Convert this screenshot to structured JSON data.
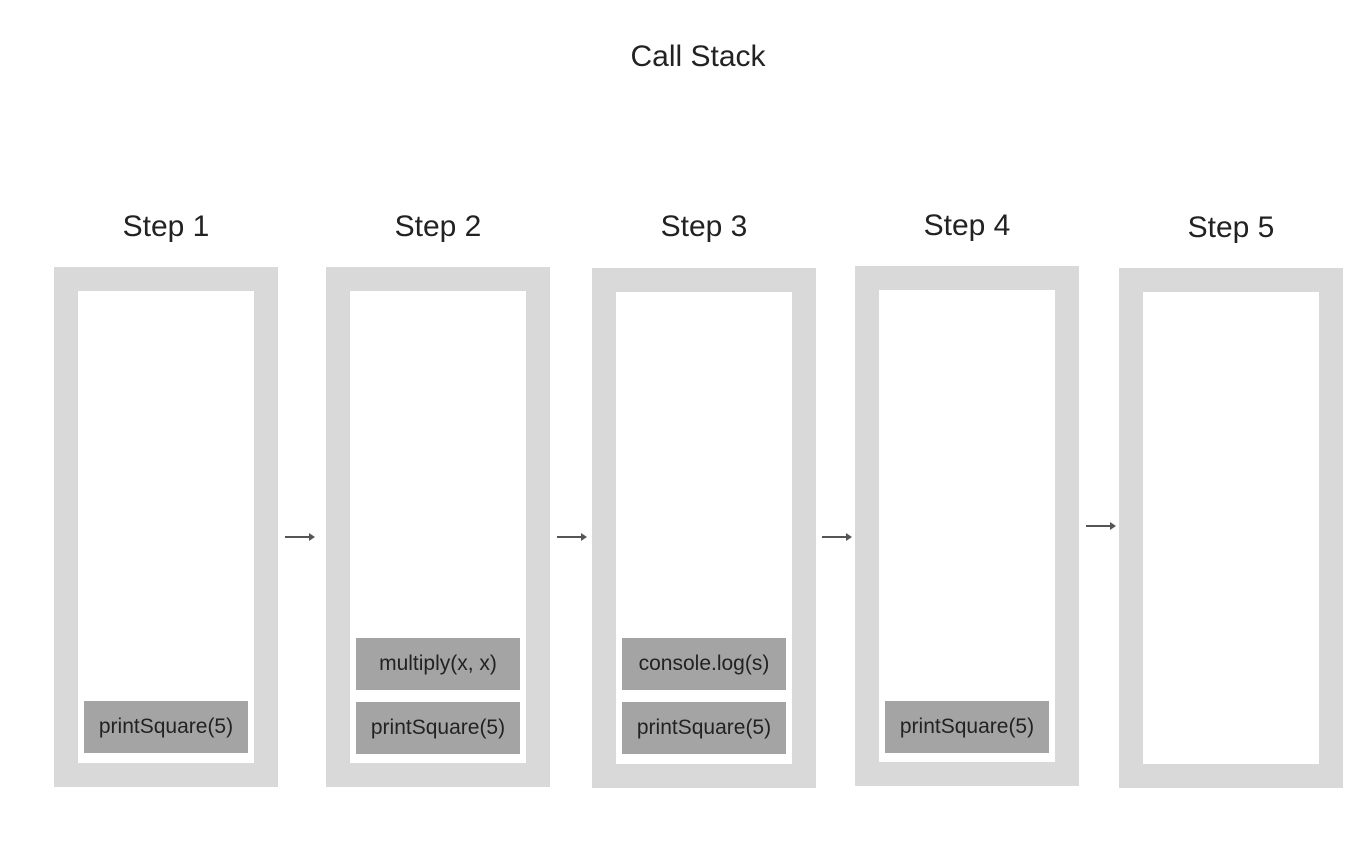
{
  "title": "Call Stack",
  "steps": [
    {
      "label": "Step 1",
      "frames": [
        "printSquare(5)"
      ]
    },
    {
      "label": "Step 2",
      "frames": [
        "multiply(x, x)",
        "printSquare(5)"
      ]
    },
    {
      "label": "Step 3",
      "frames": [
        "console.log(s)",
        "printSquare(5)"
      ]
    },
    {
      "label": "Step 4",
      "frames": [
        "printSquare(5)"
      ]
    },
    {
      "label": "Step 5",
      "frames": []
    }
  ],
  "colors": {
    "frame_border": "#d9d9d9",
    "block_fill": "#a4a4a4",
    "arrow": "#555555"
  },
  "arrow_icon": "right-arrow-icon"
}
